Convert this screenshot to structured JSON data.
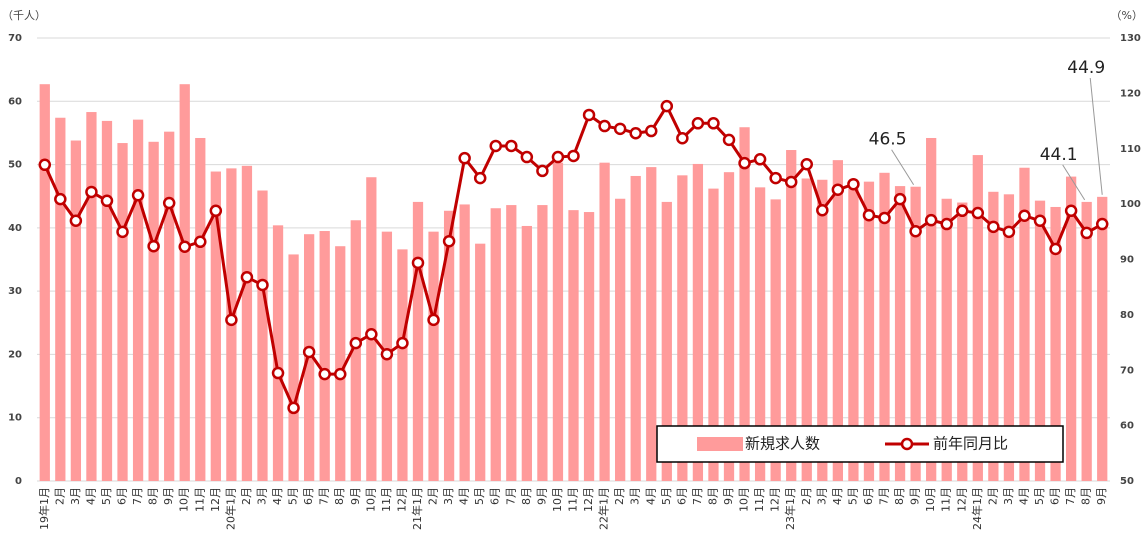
{
  "chart_data": {
    "type": "bar_line",
    "y_unit": "（千人）",
    "y2_unit": "（%）",
    "categories": [
      "19年1月",
      "2月",
      "3月",
      "4月",
      "5月",
      "6月",
      "7月",
      "8月",
      "9月",
      "10月",
      "11月",
      "12月",
      "20年1月",
      "2月",
      "3月",
      "4月",
      "5月",
      "6月",
      "7月",
      "8月",
      "9月",
      "10月",
      "11月",
      "12月",
      "21年1月",
      "2月",
      "3月",
      "4月",
      "5月",
      "6月",
      "7月",
      "8月",
      "9月",
      "10月",
      "11月",
      "12月",
      "22年1月",
      "2月",
      "3月",
      "4月",
      "5月",
      "6月",
      "7月",
      "8月",
      "9月",
      "10月",
      "11月",
      "12月",
      "23年1月",
      "2月",
      "3月",
      "4月",
      "5月",
      "6月",
      "7月",
      "8月",
      "9月",
      "10月",
      "11月",
      "12月",
      "24年1月",
      "2月",
      "3月",
      "4月",
      "5月",
      "6月",
      "7月",
      "8月",
      "9月"
    ],
    "series": [
      {
        "name": "新規求人数",
        "type": "bar",
        "color": "#ff9b9b",
        "data_labels_at": [
          56,
          67,
          68
        ],
        "values": [
          62.7,
          57.4,
          53.8,
          58.3,
          56.9,
          53.4,
          57.1,
          53.6,
          55.2,
          62.7,
          54.2,
          48.9,
          49.4,
          49.8,
          45.9,
          40.4,
          35.8,
          39.0,
          39.5,
          37.1,
          41.2,
          48.0,
          39.4,
          36.6,
          44.1,
          39.4,
          42.7,
          43.7,
          37.5,
          43.1,
          43.6,
          40.3,
          43.6,
          50.3,
          42.8,
          42.5,
          50.3,
          44.6,
          48.2,
          49.6,
          44.1,
          48.3,
          50.1,
          46.2,
          48.8,
          55.9,
          46.4,
          44.5,
          52.3,
          47.8,
          47.6,
          50.7,
          46.2,
          47.3,
          48.7,
          46.6,
          46.5,
          54.2,
          44.6,
          44.0,
          51.5,
          45.7,
          45.3,
          49.5,
          44.3,
          43.3,
          48.1,
          44.1,
          44.9
        ]
      },
      {
        "name": "前年同月比",
        "type": "line",
        "axis": "y2",
        "color": "#c00000",
        "values": [
          107.1,
          100.9,
          97.0,
          102.2,
          100.6,
          95.0,
          101.6,
          92.4,
          100.2,
          92.3,
          93.2,
          98.8,
          79.1,
          86.8,
          85.4,
          69.5,
          63.2,
          73.3,
          69.3,
          69.3,
          74.9,
          76.5,
          72.9,
          74.9,
          89.4,
          79.1,
          93.3,
          108.3,
          104.7,
          110.5,
          110.5,
          108.5,
          106.0,
          108.5,
          108.7,
          116.1,
          114.1,
          113.6,
          112.8,
          113.2,
          117.7,
          111.9,
          114.6,
          114.6,
          111.6,
          107.4,
          108.1,
          104.7,
          104.0,
          107.2,
          98.9,
          102.6,
          103.6,
          98.0,
          97.5,
          100.9,
          95.1,
          97.1,
          96.4,
          98.8,
          98.4,
          95.9,
          95.0,
          97.9,
          97.0,
          91.9,
          98.8,
          94.8,
          96.4
        ]
      }
    ],
    "ylim": [
      0,
      70
    ],
    "yticks": [
      0,
      10,
      20,
      30,
      40,
      50,
      60,
      70
    ],
    "y2lim": [
      50,
      130
    ],
    "y2ticks": [
      50,
      60,
      70,
      80,
      90,
      100,
      110,
      120,
      130
    ],
    "grid": true,
    "legend": "lower right"
  }
}
